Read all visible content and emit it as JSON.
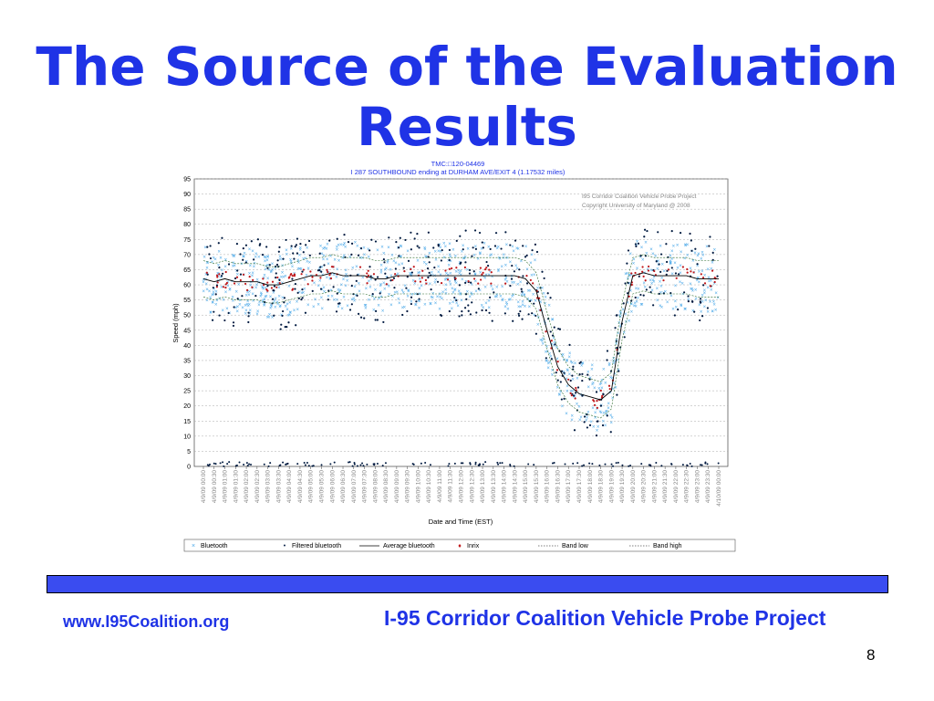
{
  "slide": {
    "title": "The Source of the Evaluation Results",
    "footer_url": "www.I95Coalition.org",
    "footer_project": "I-95 Corridor Coalition Vehicle Probe Project",
    "page_number": "8"
  },
  "colors": {
    "title": "#1f33e6",
    "bar": "#3a4cf0",
    "bluetooth": "#4aa8e8",
    "filtered": "#001a40",
    "inrix": "#c0171a"
  },
  "chart_data": {
    "type": "scatter",
    "header_line1": "TMC:□120-04469",
    "header_line2": "I 287 SOUTHBOUND ending at DURHAM AVE/EXIT 4 (1.17532 miles)",
    "watermark_line1": "I95 Corridor Coalition Vehicle Probe Project",
    "watermark_line2": "Copyright University of Maryland @ 2008",
    "xlabel": "Date and Time (EST)",
    "ylabel": "Speed (mph)",
    "ylim": [
      0,
      95
    ],
    "yticks": [
      "0",
      "5",
      "10",
      "15",
      "20",
      "25",
      "30",
      "35",
      "40",
      "45",
      "50",
      "55",
      "60",
      "65",
      "70",
      "75",
      "80",
      "85",
      "90",
      "95"
    ],
    "xticks": [
      "4/9/09 00:00",
      "4/9/09 00:30",
      "4/9/09 01:00",
      "4/9/09 01:30",
      "4/9/09 02:00",
      "4/9/09 02:30",
      "4/9/09 03:00",
      "4/9/09 03:30",
      "4/9/09 04:00",
      "4/9/09 04:30",
      "4/9/09 05:00",
      "4/9/09 05:30",
      "4/9/09 06:00",
      "4/9/09 06:30",
      "4/9/09 07:00",
      "4/9/09 07:30",
      "4/9/09 08:00",
      "4/9/09 08:30",
      "4/9/09 09:00",
      "4/9/09 09:30",
      "4/9/09 10:00",
      "4/9/09 10:30",
      "4/9/09 11:00",
      "4/9/09 11:30",
      "4/9/09 12:00",
      "4/9/09 12:30",
      "4/9/09 13:00",
      "4/9/09 13:30",
      "4/9/09 14:00",
      "4/9/09 14:30",
      "4/9/09 15:00",
      "4/9/09 15:30",
      "4/9/09 16:00",
      "4/9/09 16:30",
      "4/9/09 17:00",
      "4/9/09 17:30",
      "4/9/09 18:00",
      "4/9/09 18:30",
      "4/9/09 19:00",
      "4/9/09 19:30",
      "4/9/09 20:00",
      "4/9/09 20:30",
      "4/9/09 21:00",
      "4/9/09 21:30",
      "4/9/09 22:00",
      "4/9/09 22:30",
      "4/9/09 23:00",
      "4/9/09 23:30",
      "4/10/09 00:00"
    ],
    "grid": true,
    "legend_position": "bottom",
    "legend": [
      {
        "marker": "×",
        "label": "Bluetooth"
      },
      {
        "marker": "•",
        "label": "Filtered bluetooth"
      },
      {
        "marker": "line",
        "label": "Average bluetooth"
      },
      {
        "marker": "♦",
        "label": "Inrix"
      },
      {
        "marker": "dash",
        "label": "Band low"
      },
      {
        "marker": "dash",
        "label": "Band high"
      }
    ],
    "average_bluetooth_profile": [
      [
        0,
        62
      ],
      [
        1,
        61
      ],
      [
        2,
        62
      ],
      [
        3,
        61
      ],
      [
        4,
        61
      ],
      [
        5,
        61
      ],
      [
        6,
        60
      ],
      [
        7,
        60
      ],
      [
        8,
        61
      ],
      [
        9,
        62
      ],
      [
        10,
        63
      ],
      [
        11,
        63
      ],
      [
        12,
        64
      ],
      [
        13,
        63
      ],
      [
        14,
        63
      ],
      [
        15,
        63
      ],
      [
        16,
        62
      ],
      [
        17,
        62
      ],
      [
        18,
        63
      ],
      [
        19,
        63
      ],
      [
        20,
        63
      ],
      [
        21,
        63
      ],
      [
        22,
        63
      ],
      [
        23,
        63
      ],
      [
        24,
        63
      ],
      [
        25,
        63
      ],
      [
        26,
        63
      ],
      [
        27,
        63
      ],
      [
        28,
        63
      ],
      [
        29,
        63
      ],
      [
        30,
        62
      ],
      [
        31,
        58
      ],
      [
        32,
        45
      ],
      [
        33,
        33
      ],
      [
        34,
        27
      ],
      [
        35,
        24
      ],
      [
        36,
        23
      ],
      [
        37,
        22
      ],
      [
        38,
        25
      ],
      [
        39,
        48
      ],
      [
        40,
        63
      ],
      [
        41,
        64
      ],
      [
        42,
        63
      ],
      [
        43,
        63
      ],
      [
        44,
        63
      ],
      [
        45,
        63
      ],
      [
        46,
        62
      ],
      [
        47,
        62
      ],
      [
        48,
        62
      ]
    ]
  }
}
